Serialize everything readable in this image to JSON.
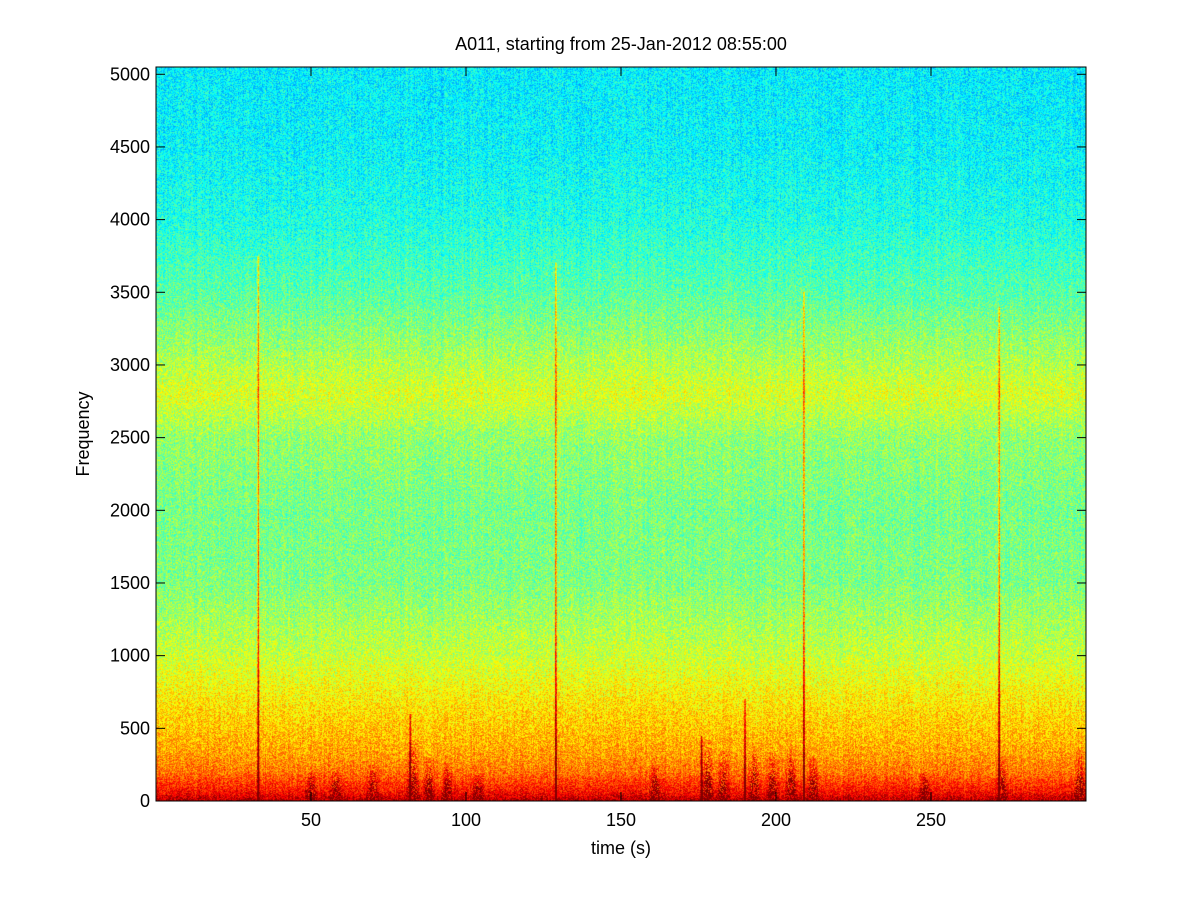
{
  "chart_data": {
    "type": "heatmap",
    "title": "A011, starting from 25-Jan-2012 08:55:00",
    "xlabel": "time (s)",
    "ylabel": "Frequency",
    "xlim": [
      0,
      300
    ],
    "ylim": [
      0,
      5050
    ],
    "xticks": [
      50,
      100,
      150,
      200,
      250
    ],
    "yticks": [
      0,
      500,
      1000,
      1500,
      2000,
      2500,
      3000,
      3500,
      4000,
      4500,
      5000
    ],
    "colormap": "jet",
    "grid": false,
    "intensity_profile": [
      {
        "frequency": 0,
        "level": 0.95
      },
      {
        "frequency": 60,
        "level": 0.87
      },
      {
        "frequency": 200,
        "level": 0.76
      },
      {
        "frequency": 350,
        "level": 0.71
      },
      {
        "frequency": 500,
        "level": 0.68
      },
      {
        "frequency": 700,
        "level": 0.64
      },
      {
        "frequency": 870,
        "level": 0.6
      },
      {
        "frequency": 1000,
        "level": 0.57
      },
      {
        "frequency": 1500,
        "level": 0.5
      },
      {
        "frequency": 2000,
        "level": 0.49
      },
      {
        "frequency": 2500,
        "level": 0.52
      },
      {
        "frequency": 2800,
        "level": 0.59
      },
      {
        "frequency": 3000,
        "level": 0.55
      },
      {
        "frequency": 3500,
        "level": 0.46
      },
      {
        "frequency": 4000,
        "level": 0.4
      },
      {
        "frequency": 4500,
        "level": 0.37
      },
      {
        "frequency": 5050,
        "level": 0.36
      }
    ],
    "transient_events": [
      {
        "time": 33,
        "max_frequency": 3750
      },
      {
        "time": 82,
        "max_frequency": 600
      },
      {
        "time": 129,
        "max_frequency": 3700
      },
      {
        "time": 176,
        "max_frequency": 450
      },
      {
        "time": 190,
        "max_frequency": 700
      },
      {
        "time": 209,
        "max_frequency": 3500
      },
      {
        "time": 272,
        "max_frequency": 3400
      }
    ],
    "low_frequency_bursts": [
      {
        "time": 50,
        "max_frequency": 200
      },
      {
        "time": 58,
        "max_frequency": 220
      },
      {
        "time": 70,
        "max_frequency": 250
      },
      {
        "time": 83,
        "max_frequency": 420
      },
      {
        "time": 88,
        "max_frequency": 300
      },
      {
        "time": 94,
        "max_frequency": 260
      },
      {
        "time": 104,
        "max_frequency": 180
      },
      {
        "time": 161,
        "max_frequency": 260
      },
      {
        "time": 178,
        "max_frequency": 430
      },
      {
        "time": 183,
        "max_frequency": 350
      },
      {
        "time": 193,
        "max_frequency": 380
      },
      {
        "time": 199,
        "max_frequency": 330
      },
      {
        "time": 205,
        "max_frequency": 360
      },
      {
        "time": 212,
        "max_frequency": 300
      },
      {
        "time": 248,
        "max_frequency": 200
      },
      {
        "time": 273,
        "max_frequency": 300
      },
      {
        "time": 298,
        "max_frequency": 350
      }
    ]
  }
}
